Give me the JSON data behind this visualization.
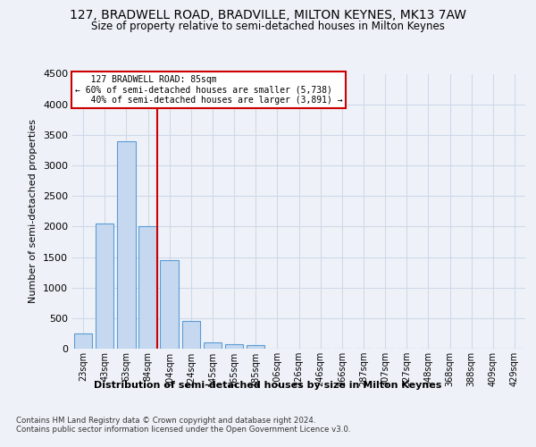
{
  "title_line1": "127, BRADWELL ROAD, BRADVILLE, MILTON KEYNES, MK13 7AW",
  "title_line2": "Size of property relative to semi-detached houses in Milton Keynes",
  "xlabel": "Distribution of semi-detached houses by size in Milton Keynes",
  "ylabel": "Number of semi-detached properties",
  "footnote": "Contains HM Land Registry data © Crown copyright and database right 2024.\nContains public sector information licensed under the Open Government Licence v3.0.",
  "categories": [
    "23sqm",
    "43sqm",
    "63sqm",
    "84sqm",
    "104sqm",
    "124sqm",
    "145sqm",
    "165sqm",
    "185sqm",
    "206sqm",
    "226sqm",
    "246sqm",
    "266sqm",
    "287sqm",
    "307sqm",
    "327sqm",
    "348sqm",
    "368sqm",
    "388sqm",
    "409sqm",
    "429sqm"
  ],
  "values": [
    255,
    2050,
    3400,
    2000,
    1450,
    450,
    100,
    70,
    60,
    0,
    0,
    0,
    0,
    0,
    0,
    0,
    0,
    0,
    0,
    0,
    0
  ],
  "bar_color": "#c5d8f0",
  "bar_edge_color": "#5b9bd5",
  "grid_color": "#d0d8e8",
  "red_line_index": 3,
  "property_label": "127 BRADWELL ROAD: 85sqm",
  "smaller_pct": "60%",
  "smaller_count": "5,738",
  "larger_pct": "40%",
  "larger_count": "3,891",
  "annotation_box_color": "#ffffff",
  "annotation_box_edge": "#cc0000",
  "ylim": [
    0,
    4500
  ],
  "yticks": [
    0,
    500,
    1000,
    1500,
    2000,
    2500,
    3000,
    3500,
    4000,
    4500
  ],
  "bg_color": "#eef2f8"
}
